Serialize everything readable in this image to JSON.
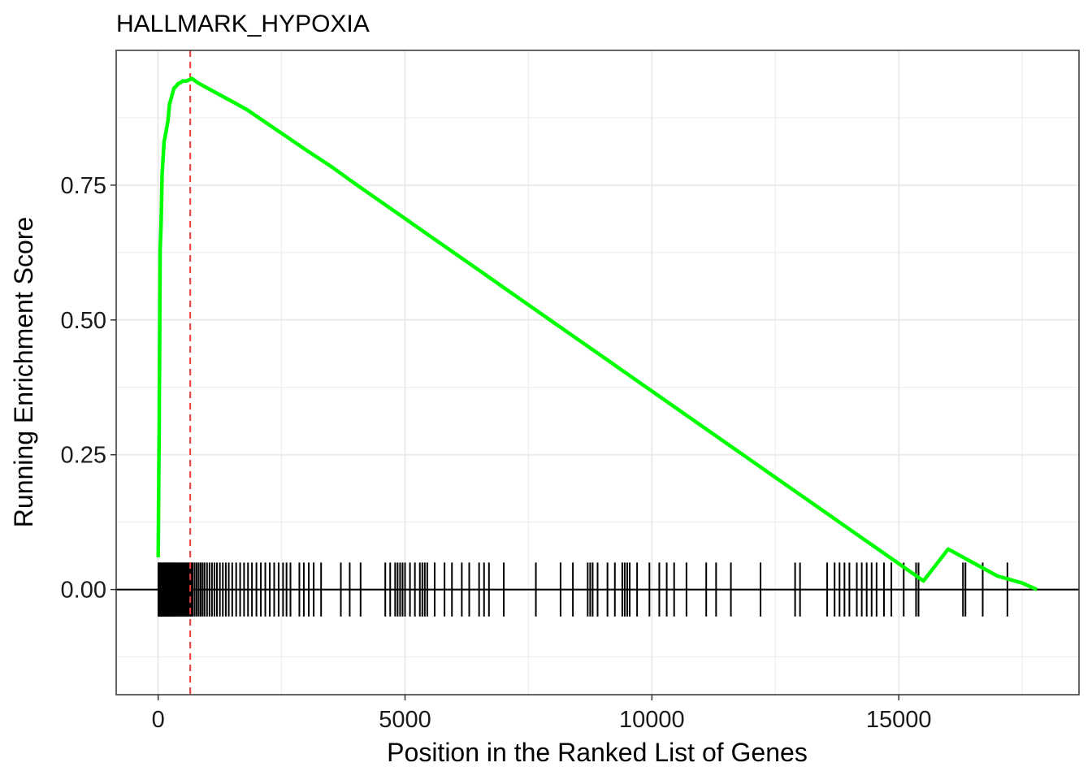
{
  "chart_data": {
    "type": "line",
    "title": "HALLMARK_HYPOXIA",
    "xlabel": "Position in the Ranked List of Genes",
    "ylabel": "Running Enrichment Score",
    "xlim": [
      -850,
      18650
    ],
    "ylim": [
      -0.195,
      1.0
    ],
    "x_ticks": [
      0,
      5000,
      10000,
      15000
    ],
    "x_tick_labels": [
      "0",
      "5000",
      "10000",
      "15000"
    ],
    "y_ticks": [
      0,
      0.25,
      0.5,
      0.75
    ],
    "y_tick_labels": [
      "0.00",
      "0.25",
      "0.50",
      "0.75"
    ],
    "grid": true,
    "colors": {
      "line": "#00ff00",
      "peak_marker": "#ee3b3b",
      "gene_ticks": "#000000",
      "grid": "#ebebeb"
    },
    "peak_position": 650,
    "series": [
      {
        "values_x": [
          0,
          20,
          40,
          60,
          80,
          100,
          120,
          140,
          160,
          180,
          200,
          230,
          260,
          290,
          320,
          360,
          400,
          450,
          500,
          560,
          620,
          680,
          800,
          1000,
          1200,
          1500,
          1800,
          2200,
          2600,
          3000,
          3500,
          4000,
          4500,
          5000,
          5500,
          6000,
          6500,
          7000,
          7500,
          8000,
          8500,
          9000,
          9500,
          10000,
          10500,
          11000,
          11500,
          12000,
          12500,
          13000,
          13500,
          14000,
          14500,
          15000,
          15500,
          16000,
          16500,
          17000,
          17500,
          17800
        ],
        "values_y": [
          0.06,
          0.3,
          0.63,
          0.68,
          0.77,
          0.8,
          0.83,
          0.84,
          0.85,
          0.86,
          0.87,
          0.9,
          0.91,
          0.92,
          0.93,
          0.933,
          0.938,
          0.94,
          0.943,
          0.943,
          0.945,
          0.948,
          0.94,
          0.93,
          0.92,
          0.905,
          0.89,
          0.865,
          0.84,
          0.815,
          0.785,
          0.752,
          0.72,
          0.688,
          0.656,
          0.624,
          0.592,
          0.56,
          0.528,
          0.496,
          0.464,
          0.432,
          0.4,
          0.368,
          0.336,
          0.304,
          0.272,
          0.24,
          0.208,
          0.176,
          0.144,
          0.112,
          0.08,
          0.048,
          0.016,
          0.075,
          0.05,
          0.025,
          0.012,
          0.0
        ]
      }
    ],
    "gene_hits": [
      5,
      18,
      30,
      45,
      58,
      70,
      85,
      98,
      110,
      125,
      138,
      150,
      165,
      178,
      190,
      205,
      218,
      230,
      245,
      258,
      270,
      285,
      300,
      315,
      330,
      345,
      360,
      380,
      400,
      420,
      440,
      460,
      480,
      500,
      520,
      540,
      560,
      580,
      600,
      620,
      640,
      660,
      680,
      700,
      740,
      780,
      820,
      860,
      900,
      940,
      990,
      1040,
      1090,
      1140,
      1190,
      1250,
      1310,
      1370,
      1430,
      1500,
      1580,
      1660,
      1740,
      1820,
      1900,
      1990,
      2080,
      2170,
      2260,
      2350,
      2440,
      2530,
      2600,
      2680,
      2860,
      2950,
      3050,
      3150,
      3300,
      3700,
      3880,
      4100,
      4600,
      4700,
      4800,
      4850,
      4900,
      4950,
      5000,
      5100,
      5200,
      5300,
      5350,
      5400,
      5450,
      5600,
      5800,
      5950,
      6150,
      6300,
      6500,
      6600,
      6700,
      7000,
      7650,
      8150,
      8400,
      8700,
      8750,
      8800,
      8900,
      9100,
      9250,
      9400,
      9450,
      9500,
      9550,
      9700,
      9950,
      10150,
      10300,
      10450,
      10700,
      11100,
      11300,
      11600,
      12200,
      12900,
      13000,
      13550,
      13700,
      13800,
      13900,
      14000,
      14150,
      14250,
      14350,
      14450,
      14550,
      14700,
      14850,
      15100,
      15350,
      15400,
      16300,
      16350,
      16700,
      17200
    ]
  }
}
